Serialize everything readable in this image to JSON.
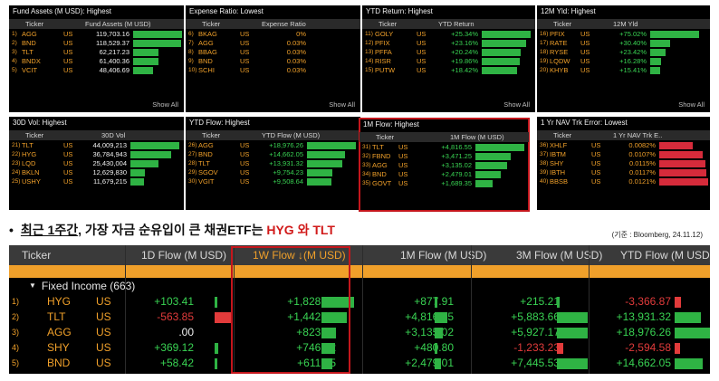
{
  "colors": {
    "positive": "#39d353",
    "negative": "#e23b3b",
    "accent": "#f0a02a",
    "highlight": "#c4161c"
  },
  "panels": [
    {
      "title": "Fund Assets (M USD): Highest",
      "col_ticker": "Ticker",
      "col_value": "Fund Assets (M USD)",
      "show_all": "Show All",
      "rows": [
        {
          "num": "1)",
          "ticker": "AGG",
          "cty": "US",
          "value": "119,703.16",
          "ratio": 1.0
        },
        {
          "num": "2)",
          "ticker": "BND",
          "cty": "US",
          "value": "118,529.37",
          "ratio": 0.99
        },
        {
          "num": "3)",
          "ticker": "TLT",
          "cty": "US",
          "value": "62,217.23",
          "ratio": 0.52
        },
        {
          "num": "4)",
          "ticker": "BNDX",
          "cty": "US",
          "value": "61,400.36",
          "ratio": 0.51
        },
        {
          "num": "5)",
          "ticker": "VCIT",
          "cty": "US",
          "value": "48,406.69",
          "ratio": 0.4
        }
      ]
    },
    {
      "title": "Expense Ratio: Lowest",
      "col_ticker": "Ticker",
      "col_value": "Expense Ratio",
      "show_all": "Show All",
      "rows": [
        {
          "num": "6)",
          "ticker": "BKAG",
          "cty": "US",
          "value": "0%",
          "ratio": 0
        },
        {
          "num": "7)",
          "ticker": "AGG",
          "cty": "US",
          "value": "0.03%",
          "ratio": 0
        },
        {
          "num": "8)",
          "ticker": "BBAG",
          "cty": "US",
          "value": "0.03%",
          "ratio": 0
        },
        {
          "num": "9)",
          "ticker": "BND",
          "cty": "US",
          "value": "0.03%",
          "ratio": 0
        },
        {
          "num": "10)",
          "ticker": "SCHI",
          "cty": "US",
          "value": "0.03%",
          "ratio": 0
        }
      ]
    },
    {
      "title": "YTD Return: Highest",
      "col_ticker": "Ticker",
      "col_value": "YTD Return",
      "show_all": "Show All",
      "rows": [
        {
          "num": "11)",
          "ticker": "GOLY",
          "cty": "US",
          "value": "+25.34%",
          "ratio": 1.0
        },
        {
          "num": "12)",
          "ticker": "PFIX",
          "cty": "US",
          "value": "+23.16%",
          "ratio": 0.91
        },
        {
          "num": "13)",
          "ticker": "PFFA",
          "cty": "US",
          "value": "+20.24%",
          "ratio": 0.8
        },
        {
          "num": "14)",
          "ticker": "RISR",
          "cty": "US",
          "value": "+19.86%",
          "ratio": 0.78
        },
        {
          "num": "15)",
          "ticker": "PUTW",
          "cty": "US",
          "value": "+18.42%",
          "ratio": 0.73
        }
      ]
    },
    {
      "title": "12M Yld: Highest",
      "col_ticker": "Ticker",
      "col_value": "12M Yld",
      "show_all": "Show All",
      "rows": [
        {
          "num": "16)",
          "ticker": "PFIX",
          "cty": "US",
          "value": "+75.02%",
          "ratio": 1.0
        },
        {
          "num": "17)",
          "ticker": "RATE",
          "cty": "US",
          "value": "+30.40%",
          "ratio": 0.41
        },
        {
          "num": "18)",
          "ticker": "RYSE",
          "cty": "US",
          "value": "+23.42%",
          "ratio": 0.31
        },
        {
          "num": "19)",
          "ticker": "LQDW",
          "cty": "US",
          "value": "+16.28%",
          "ratio": 0.22
        },
        {
          "num": "20)",
          "ticker": "KHYB",
          "cty": "US",
          "value": "+15.41%",
          "ratio": 0.21
        }
      ]
    },
    {
      "title": "30D Vol: Highest",
      "col_ticker": "Ticker",
      "col_value": "30D Vol",
      "rows": [
        {
          "num": "21)",
          "ticker": "TLT",
          "cty": "US",
          "value": "44,009,213",
          "ratio": 1.0
        },
        {
          "num": "22)",
          "ticker": "HYG",
          "cty": "US",
          "value": "36,784,943",
          "ratio": 0.84
        },
        {
          "num": "23)",
          "ticker": "LQD",
          "cty": "US",
          "value": "25,430,004",
          "ratio": 0.58
        },
        {
          "num": "24)",
          "ticker": "BKLN",
          "cty": "US",
          "value": "12,629,830",
          "ratio": 0.29
        },
        {
          "num": "25)",
          "ticker": "USHY",
          "cty": "US",
          "value": "11,679,215",
          "ratio": 0.27
        }
      ]
    },
    {
      "title": "YTD Flow: Highest",
      "col_ticker": "Ticker",
      "col_value": "YTD Flow (M USD)",
      "rows": [
        {
          "num": "26)",
          "ticker": "AGG",
          "cty": "US",
          "value": "+18,976.26",
          "ratio": 1.0
        },
        {
          "num": "27)",
          "ticker": "BND",
          "cty": "US",
          "value": "+14,662.05",
          "ratio": 0.77
        },
        {
          "num": "28)",
          "ticker": "TLT",
          "cty": "US",
          "value": "+13,931.32",
          "ratio": 0.73
        },
        {
          "num": "29)",
          "ticker": "SGOV",
          "cty": "US",
          "value": "+9,754.23",
          "ratio": 0.51
        },
        {
          "num": "30)",
          "ticker": "VGIT",
          "cty": "US",
          "value": "+9,508.64",
          "ratio": 0.5
        }
      ]
    },
    {
      "title": "1M Flow: Highest",
      "col_ticker": "Ticker",
      "col_value": "1M Flow (M USD)",
      "rows": [
        {
          "num": "31)",
          "ticker": "TLT",
          "cty": "US",
          "value": "+4,816.55",
          "ratio": 1.0
        },
        {
          "num": "32)",
          "ticker": "FBND",
          "cty": "US",
          "value": "+3,471.25",
          "ratio": 0.72
        },
        {
          "num": "33)",
          "ticker": "AGG",
          "cty": "US",
          "value": "+3,135.02",
          "ratio": 0.65
        },
        {
          "num": "34)",
          "ticker": "BND",
          "cty": "US",
          "value": "+2,479.01",
          "ratio": 0.51
        },
        {
          "num": "35)",
          "ticker": "GOVT",
          "cty": "US",
          "value": "+1,689.35",
          "ratio": 0.35
        }
      ]
    },
    {
      "title": "1 Yr NAV Trk Error: Lowest",
      "col_ticker": "Ticker",
      "col_value": "1 Yr NAV Trk E..",
      "rows": [
        {
          "num": "36)",
          "ticker": "XHLF",
          "cty": "US",
          "value": "0.0082%",
          "ratio": 0.68
        },
        {
          "num": "37)",
          "ticker": "IBTM",
          "cty": "US",
          "value": "0.0107%",
          "ratio": 0.88
        },
        {
          "num": "38)",
          "ticker": "SHY",
          "cty": "US",
          "value": "0.0115%",
          "ratio": 0.95
        },
        {
          "num": "39)",
          "ticker": "IBTH",
          "cty": "US",
          "value": "0.0117%",
          "ratio": 0.97
        },
        {
          "num": "40)",
          "ticker": "BBSB",
          "cty": "US",
          "value": "0.0121%",
          "ratio": 1.0
        }
      ]
    }
  ],
  "caption": {
    "bullet": "•",
    "part1": "최근 1주간",
    "part2": ", 가장 자금  순유입이 큰 채권ETF는 ",
    "red": "HYG 와 TLT",
    "source": "(기준 : Bloomberg, 24.11.12)"
  },
  "table": {
    "headers": {
      "ticker": "Ticker",
      "d1": "1D Flow (M USD)",
      "w1": "1W Flow ↓(M USD)",
      "m1": "1M Flow (M USD)",
      "m3": "3M Flow (M USD)",
      "ytd": "YTD Flow (M USD)"
    },
    "group": "Fixed Income (663)",
    "rows": [
      {
        "num": "1)",
        "ticker": "HYG",
        "cty": "US",
        "d1": "+103.41",
        "w1": "+1,828.06",
        "m1": "+877.91",
        "m3": "+215.21",
        "ytd": "-3,366.87",
        "d1_dir": "pos",
        "w1_dir": "pos",
        "m1_dir": "pos",
        "m3_dir": "pos",
        "ytd_dir": "neg",
        "d1_bar": 0.06,
        "w1_bar": 1.0,
        "m1_bar": 0.18,
        "m3_bar": 0.04,
        "ytd_bar": 0.18
      },
      {
        "num": "2)",
        "ticker": "TLT",
        "cty": "US",
        "d1": "-563.85",
        "w1": "+1,442.50",
        "m1": "+4,816.55",
        "m3": "+5,883.66",
        "ytd": "+13,931.32",
        "d1_dir": "neg",
        "w1_dir": "pos",
        "m1_dir": "pos",
        "m3_dir": "pos",
        "ytd_dir": "pos",
        "d1_bar": 1.0,
        "w1_bar": 0.79,
        "m1_bar": 1.0,
        "m3_bar": 0.99,
        "ytd_bar": 0.73
      },
      {
        "num": "3)",
        "ticker": "AGG",
        "cty": "US",
        "d1": ".00",
        "w1": "+823.74",
        "m1": "+3,135.02",
        "m3": "+5,927.17",
        "ytd": "+18,976.26",
        "d1_dir": "zero",
        "w1_dir": "pos",
        "m1_dir": "pos",
        "m3_dir": "pos",
        "ytd_dir": "pos",
        "d1_bar": 0,
        "w1_bar": 0.45,
        "m1_bar": 0.65,
        "m3_bar": 1.0,
        "ytd_bar": 1.0
      },
      {
        "num": "4)",
        "ticker": "SHY",
        "cty": "US",
        "d1": "+369.12",
        "w1": "+746.52",
        "m1": "+480.80",
        "m3": "-1,233.23",
        "ytd": "-2,594.58",
        "d1_dir": "pos",
        "w1_dir": "pos",
        "m1_dir": "pos",
        "m3_dir": "neg",
        "ytd_dir": "neg",
        "d1_bar": 0.23,
        "w1_bar": 0.41,
        "m1_bar": 0.1,
        "m3_bar": 0.21,
        "ytd_bar": 0.14
      },
      {
        "num": "5)",
        "ticker": "BND",
        "cty": "US",
        "d1": "+58.42",
        "w1": "+611.85",
        "m1": "+2,479.01",
        "m3": "+7,445.53",
        "ytd": "+14,662.05",
        "d1_dir": "pos",
        "w1_dir": "pos",
        "m1_dir": "pos",
        "m3_dir": "pos",
        "ytd_dir": "pos",
        "d1_bar": 0.04,
        "w1_bar": 0.33,
        "m1_bar": 0.51,
        "m3_bar": 1.0,
        "ytd_bar": 0.77
      }
    ]
  }
}
